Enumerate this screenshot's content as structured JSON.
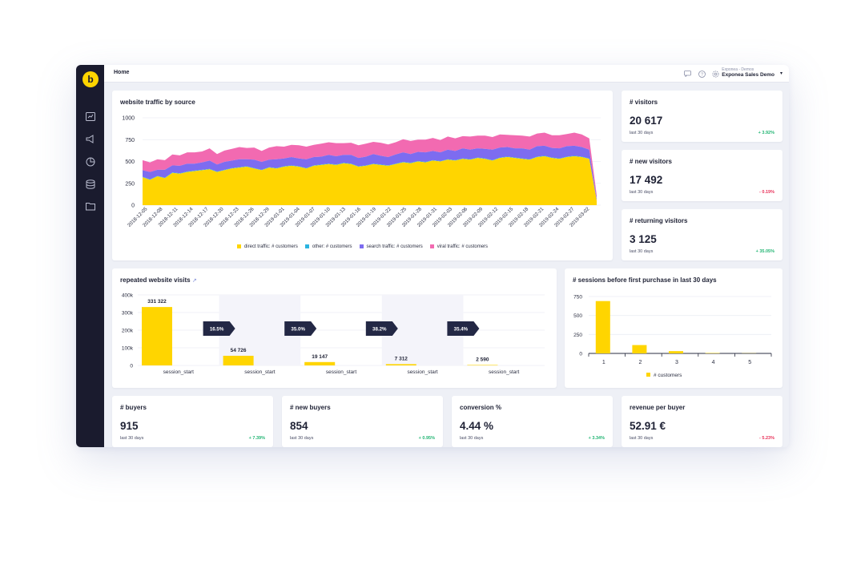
{
  "header": {
    "breadcrumb": "Home",
    "project_sub": "Exponea - Demos",
    "project_name": "Exponea Sales Demo"
  },
  "icons": {
    "logo": "b",
    "nav": [
      "dashboard-icon",
      "megaphone-icon",
      "pie-chart-icon",
      "database-icon",
      "folder-icon"
    ],
    "top": [
      "chat-icon",
      "help-icon",
      "settings-icon",
      "caret-down-icon"
    ]
  },
  "colors": {
    "direct": "#ffd500",
    "other": "#2bb4e0",
    "search": "#7d6cf0",
    "viral": "#f26ab1",
    "positive": "#22b573",
    "negative": "#e8325a",
    "sidebar": "#1a1b2e",
    "arrow": "#232845"
  },
  "traffic": {
    "title": "website traffic by source",
    "chart_data": {
      "type": "area",
      "stacked": true,
      "ylim": [
        0,
        1000
      ],
      "yticks": [
        "0",
        "250",
        "500",
        "750",
        "1000"
      ],
      "xticks": [
        "2018-12-05",
        "2018-12-08",
        "2018-12-11",
        "2018-12-14",
        "2018-12-17",
        "2018-12-20",
        "2018-12-23",
        "2018-12-26",
        "2018-12-29",
        "2019-01-01",
        "2019-01-04",
        "2019-01-07",
        "2019-01-10",
        "2019-01-13",
        "2019-01-16",
        "2019-01-19",
        "2019-01-22",
        "2019-01-25",
        "2019-01-28",
        "2019-01-31",
        "2019-02-03",
        "2019-02-06",
        "2019-02-09",
        "2019-02-12",
        "2019-02-15",
        "2019-02-18",
        "2019-02-21",
        "2019-02-24",
        "2019-02-27",
        "2019-03-02"
      ],
      "series": [
        {
          "name": "direct traffic: # customers",
          "values": [
            320,
            290,
            330,
            310,
            370,
            360,
            380,
            390,
            400,
            410,
            380,
            400,
            420,
            430,
            440,
            420,
            400,
            430,
            420,
            440,
            450,
            440,
            420,
            450,
            460,
            470,
            460,
            480,
            470,
            440,
            450,
            470,
            460,
            450,
            470,
            490,
            480,
            500,
            490,
            510,
            500,
            520,
            510,
            530,
            520,
            540,
            530,
            510,
            540,
            550,
            540,
            530,
            520,
            550,
            560,
            540,
            530,
            550,
            560,
            550,
            530,
            50
          ]
        },
        {
          "name": "other: # customers",
          "values": [
            5,
            5,
            5,
            5,
            5,
            5,
            5,
            5,
            5,
            5,
            5,
            5,
            5,
            5,
            5,
            5,
            5,
            5,
            5,
            5,
            5,
            5,
            5,
            5,
            5,
            5,
            5,
            5,
            5,
            5,
            5,
            5,
            5,
            5,
            5,
            5,
            5,
            5,
            5,
            5,
            5,
            5,
            5,
            5,
            5,
            5,
            5,
            5,
            5,
            5,
            5,
            5,
            5,
            5,
            5,
            5,
            5,
            5,
            5,
            5,
            5,
            5
          ]
        },
        {
          "name": "search traffic: # customers",
          "values": [
            75,
            85,
            70,
            90,
            80,
            85,
            90,
            80,
            85,
            95,
            80,
            90,
            85,
            90,
            80,
            95,
            90,
            85,
            100,
            90,
            95,
            90,
            100,
            95,
            90,
            100,
            95,
            90,
            100,
            95,
            100,
            110,
            100,
            95,
            105,
            110,
            100,
            105,
            110,
            105,
            100,
            110,
            105,
            115,
            110,
            105,
            110,
            120,
            115,
            110,
            105,
            115,
            110,
            120,
            115,
            110,
            115,
            120,
            115,
            110,
            100,
            20
          ]
        },
        {
          "name": "viral traffic: # customers",
          "values": [
            115,
            110,
            120,
            110,
            125,
            120,
            130,
            130,
            125,
            140,
            120,
            130,
            135,
            140,
            130,
            140,
            125,
            140,
            150,
            135,
            140,
            150,
            145,
            140,
            150,
            145,
            150,
            135,
            140,
            145,
            150,
            140,
            150,
            145,
            140,
            150,
            150,
            140,
            145,
            150,
            140,
            150,
            145,
            140,
            150,
            145,
            150,
            145,
            150,
            140,
            150,
            145,
            150,
            145,
            150,
            145,
            150,
            140,
            150,
            145,
            130,
            40
          ]
        }
      ]
    },
    "legend": [
      {
        "label": "direct traffic: # customers",
        "color": "#ffd500"
      },
      {
        "label": "other: # customers",
        "color": "#2bb4e0"
      },
      {
        "label": "search traffic: # customers",
        "color": "#7d6cf0"
      },
      {
        "label": "viral traffic: # customers",
        "color": "#f26ab1"
      }
    ]
  },
  "kpis_right": [
    {
      "title": "# visitors",
      "value": "20 617",
      "sub": "last 30 days",
      "change": "+ 3.92%",
      "trend": "pos"
    },
    {
      "title": "# new visitors",
      "value": "17 492",
      "sub": "last 30 days",
      "change": "- 0.19%",
      "trend": "neg"
    },
    {
      "title": "# returning visitors",
      "value": "3 125",
      "sub": "last 30 days",
      "change": "+ 35.05%",
      "trend": "pos"
    }
  ],
  "funnel": {
    "title": "repeated website visits",
    "chart_data": {
      "type": "bar",
      "categories": [
        "session_start",
        "session_start",
        "session_start",
        "session_start",
        "session_start"
      ],
      "values": [
        331322,
        54726,
        19147,
        7312,
        2590
      ],
      "value_labels": [
        "331 322",
        "54 726",
        "19 147",
        "7 312",
        "2 590"
      ],
      "conversion_labels": [
        "16.5%",
        "35.0%",
        "38.2%",
        "35.4%"
      ],
      "ylim": [
        0,
        400000
      ],
      "yticks": [
        "0",
        "100k",
        "200k",
        "300k",
        "400k"
      ]
    }
  },
  "sessions": {
    "title": "# sessions before first purchase in last 30 days",
    "chart_data": {
      "type": "bar",
      "categories": [
        "1",
        "2",
        "3",
        "4",
        "5"
      ],
      "series": [
        {
          "name": "# customers",
          "values": [
            690,
            110,
            30,
            5,
            2
          ]
        }
      ],
      "ylim": [
        0,
        750
      ],
      "yticks": [
        "0",
        "250",
        "500",
        "750"
      ]
    }
  },
  "kpis_bottom": [
    {
      "title": "# buyers",
      "value": "915",
      "sub": "last 30 days",
      "change": "+ 7.39%",
      "trend": "pos"
    },
    {
      "title": "# new buyers",
      "value": "854",
      "sub": "last 30 days",
      "change": "+ 0.95%",
      "trend": "pos"
    },
    {
      "title": "conversion %",
      "value": "4.44 %",
      "sub": "last 30 days",
      "change": "+ 3.34%",
      "trend": "pos"
    },
    {
      "title": "revenue per buyer",
      "value": "52.91 €",
      "sub": "last 30 days",
      "change": "- 5.23%",
      "trend": "neg"
    }
  ]
}
